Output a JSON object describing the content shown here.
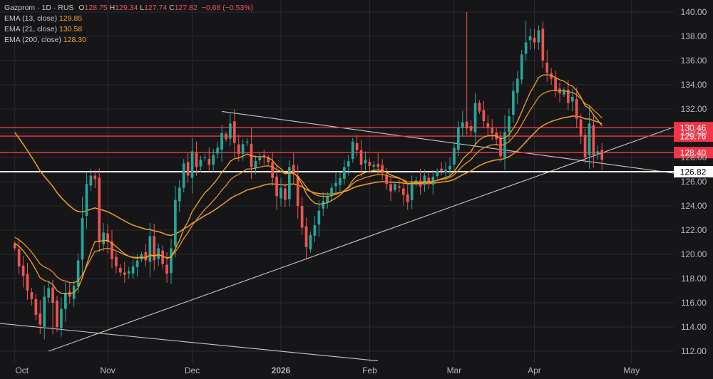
{
  "legend": {
    "symbol": "Gazprom · 1D · RUS",
    "o_label": "O",
    "o": "128.75",
    "h_label": "H",
    "h": "129.34",
    "l_label": "L",
    "l": "127.74",
    "c_label": "C",
    "c": "127.82",
    "change": "−0.68 (−0.53%)",
    "ema13_label": "EMA (13, close)",
    "ema13": "129.85",
    "ema21_label": "EMA (21, close)",
    "ema21": "130.58",
    "ema200_label": "EMA (200, close)",
    "ema200": "128.30"
  },
  "colors": {
    "background": "#161619",
    "grid": "#2a2a2e",
    "up": "#26a69a",
    "down": "#ef5350",
    "ema13": "#f5a623",
    "ema21": "#e8922a",
    "ema200": "#e59a2c",
    "level_red": "#f23645",
    "level_white": "#ffffff",
    "trendline": "#c8c8c8",
    "axis_text": "#b8b8bc"
  },
  "chart_data": {
    "type": "candlestick",
    "title": "Gazprom · 1D · RUS",
    "ylim": [
      111,
      141
    ],
    "y_ticks": [
      "112.00",
      "114.00",
      "116.00",
      "118.00",
      "120.00",
      "122.00",
      "124.00",
      "126.00",
      "128.00",
      "130.00",
      "132.00",
      "134.00",
      "136.00",
      "138.00",
      "140.00"
    ],
    "x_ticks": [
      {
        "label": "Oct",
        "day": 0
      },
      {
        "label": "Nov",
        "day": 22
      },
      {
        "label": "Dec",
        "day": 42
      },
      {
        "label": "2026",
        "day": 63
      },
      {
        "label": "Feb",
        "day": 84
      },
      {
        "label": "Mar",
        "day": 104
      },
      {
        "label": "Apr",
        "day": 123
      },
      {
        "label": "May",
        "day": 146
      }
    ],
    "x_range": [
      -3.5,
      156
    ],
    "horizontal_levels": [
      {
        "value": 130.46,
        "label": "130.46",
        "color": "red"
      },
      {
        "value": 129.76,
        "label": "129.76",
        "color": "red"
      },
      {
        "value": 128.4,
        "label": "128.40",
        "color": "red"
      },
      {
        "value": 126.82,
        "label": "126.82",
        "color": "white"
      }
    ],
    "trendlines": [
      {
        "from": [
          8,
          112.0
        ],
        "to": [
          156,
          130.5
        ]
      },
      {
        "from": [
          49,
          131.8
        ],
        "to": [
          156,
          126.7
        ]
      },
      {
        "from": [
          -3.5,
          114.3
        ],
        "to": [
          86,
          111.2
        ]
      }
    ],
    "closes": [
      120.5,
      119.0,
      118.2,
      117.0,
      116.3,
      115.0,
      114.2,
      116.5,
      117.2,
      116.0,
      114.0,
      115.5,
      116.8,
      116.5,
      117.4,
      119.5,
      123.0,
      125.8,
      126.5,
      126.2,
      121.0,
      121.8,
      121.0,
      119.6,
      119.0,
      118.5,
      118.3,
      118.6,
      119.0,
      119.5,
      120.0,
      119.5,
      121.5,
      119.5,
      120.5,
      119.2,
      118.4,
      120.5,
      124.5,
      125.5,
      127.5,
      126.5,
      128.5,
      127.2,
      127.8,
      128.0,
      127.4,
      128.2,
      128.8,
      130.0,
      129.5,
      130.8,
      129.2,
      128.3,
      129.1,
      129.3,
      127.2,
      127.7,
      128.0,
      128.1,
      127.6,
      126.3,
      124.8,
      125.5,
      124.5,
      127.2,
      126.6,
      124.0,
      122.2,
      120.6,
      121.6,
      122.4,
      123.6,
      124.4,
      124.8,
      125.5,
      125.9,
      126.3,
      127.2,
      127.7,
      129.3,
      128.6,
      127.4,
      127.8,
      127.3,
      127.4,
      127.2,
      126.7,
      125.8,
      125.2,
      125.8,
      125.5,
      124.9,
      124.3,
      126.0,
      126.1,
      125.6,
      126.5,
      125.8,
      126.4,
      126.9,
      126.9,
      127.0,
      127.3,
      128.8,
      130.5,
      130.9,
      130.4,
      130.2,
      132.5,
      131.8,
      131.0,
      130.5,
      130.0,
      129.5,
      128.1,
      130.1,
      131.4,
      133.5,
      134.5,
      136.5,
      137.5,
      138.0,
      137.5,
      138.5,
      136.0,
      135.0,
      134.5,
      133.5,
      133.3,
      133.6,
      132.5,
      133.0,
      131.2,
      129.8,
      128.0,
      130.8,
      128.2,
      128.5,
      127.8
    ]
  }
}
